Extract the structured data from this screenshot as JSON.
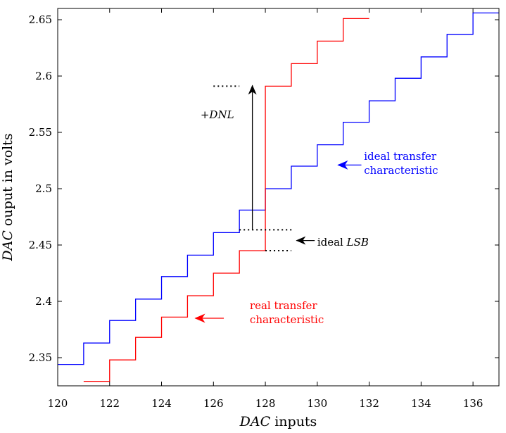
{
  "chart_data": {
    "type": "line",
    "xlabel_italic": "DAC",
    "xlabel_rest": " inputs",
    "ylabel_italic": "DAC",
    "ylabel_rest": " ouput in volts",
    "xlim": [
      120,
      137
    ],
    "ylim": [
      2.325,
      2.66
    ],
    "xticks": [
      "120",
      "122",
      "124",
      "126",
      "128",
      "130",
      "132",
      "134",
      "136"
    ],
    "yticks": [
      "2.35",
      "2.4",
      "2.45",
      "2.5",
      "2.55",
      "2.6",
      "2.65"
    ],
    "grid": false,
    "series": [
      {
        "color": "#0000ff",
        "step": true,
        "x": [
          120,
          121,
          122,
          123,
          124,
          125,
          126,
          127,
          128,
          129,
          130,
          131,
          132,
          133,
          134,
          135,
          136,
          137
        ],
        "values": [
          2.344,
          2.363,
          2.383,
          2.402,
          2.422,
          2.441,
          2.461,
          2.481,
          2.5,
          2.52,
          2.539,
          2.559,
          2.578,
          2.598,
          2.617,
          2.637,
          2.656,
          2.656
        ]
      },
      {
        "color": "#ff0000",
        "step": true,
        "x": [
          121,
          122,
          123,
          124,
          125,
          126,
          127,
          128,
          129,
          130,
          131,
          132
        ],
        "values": [
          2.329,
          2.348,
          2.368,
          2.386,
          2.405,
          2.425,
          2.445,
          2.591,
          2.611,
          2.631,
          2.651,
          2.651
        ]
      }
    ],
    "annotations": {
      "dnl": {
        "label_sign": "+",
        "label_italic": "DNL"
      },
      "ideal_lsb": {
        "label_text": "ideal ",
        "label_italic": "LSB"
      },
      "ideal_transfer": {
        "lines": [
          "ideal transfer",
          "characteristic"
        ],
        "color": "#0000ff"
      },
      "real_transfer": {
        "lines": [
          "real transfer",
          "characteristic"
        ],
        "color": "#ff0000"
      }
    }
  }
}
